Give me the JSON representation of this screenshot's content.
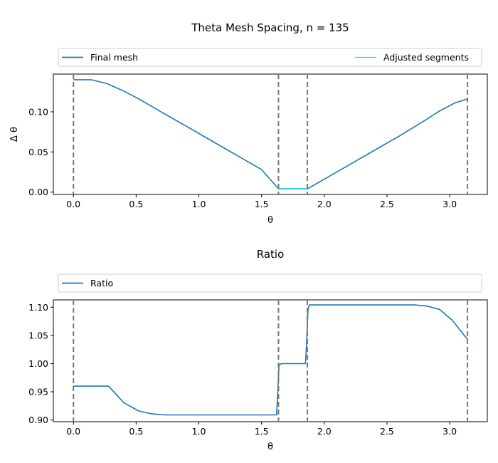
{
  "chart_data": [
    {
      "type": "line",
      "title": "Theta Mesh Spacing, n = 135",
      "xlabel": "θ",
      "ylabel": "Δ θ",
      "xlim": [
        -0.16,
        3.3
      ],
      "ylim": [
        -0.003,
        0.147
      ],
      "xticks": [
        0.0,
        0.5,
        1.0,
        1.5,
        2.0,
        2.5,
        3.0
      ],
      "xtick_labels": [
        "0.0",
        "0.5",
        "1.0",
        "1.5",
        "2.0",
        "2.5",
        "3.0"
      ],
      "yticks": [
        0.0,
        0.05,
        0.1
      ],
      "ytick_labels": [
        "0.00",
        "0.05",
        "0.10"
      ],
      "vlines": [
        0.0,
        1.635,
        1.865,
        3.1416
      ],
      "legend_position": "top, above plot",
      "series": [
        {
          "name": "Final mesh",
          "color": "#1f77b4",
          "x": [
            0.0,
            0.14,
            0.27,
            0.4,
            0.51,
            0.61,
            0.72,
            0.9,
            1.1,
            1.3,
            1.5,
            1.635,
            1.865,
            2.0,
            2.2,
            2.4,
            2.6,
            2.8,
            2.92,
            3.04,
            3.1416
          ],
          "y": [
            0.14,
            0.14,
            0.135,
            0.126,
            0.117,
            0.108,
            0.098,
            0.082,
            0.064,
            0.046,
            0.028,
            0.004,
            0.004,
            0.016,
            0.034,
            0.052,
            0.07,
            0.089,
            0.101,
            0.111,
            0.116
          ]
        },
        {
          "name": "Adjusted segments",
          "color": "#00e5ee",
          "x": [
            1.635,
            1.865
          ],
          "y": [
            0.004,
            0.004
          ]
        }
      ]
    },
    {
      "type": "line",
      "title": "Ratio",
      "xlabel": "θ",
      "ylabel": "",
      "xlim": [
        -0.16,
        3.3
      ],
      "ylim": [
        0.897,
        1.113
      ],
      "xticks": [
        0.0,
        0.5,
        1.0,
        1.5,
        2.0,
        2.5,
        3.0
      ],
      "xtick_labels": [
        "0.0",
        "0.5",
        "1.0",
        "1.5",
        "2.0",
        "2.5",
        "3.0"
      ],
      "yticks": [
        0.9,
        0.95,
        1.0,
        1.05,
        1.1
      ],
      "ytick_labels": [
        "0.90",
        "0.95",
        "1.00",
        "1.05",
        "1.10"
      ],
      "vlines": [
        0.0,
        1.635,
        1.865,
        3.1416
      ],
      "legend_position": "top, above plot",
      "series": [
        {
          "name": "Ratio",
          "color": "#1f77b4",
          "x": [
            0.0,
            0.14,
            0.28,
            0.4,
            0.52,
            0.62,
            0.73,
            0.9,
            1.2,
            1.5,
            1.62,
            1.64,
            1.66,
            1.85,
            1.86,
            1.87,
            1.88,
            2.2,
            2.5,
            2.72,
            2.82,
            2.92,
            3.02,
            3.1416
          ],
          "y": [
            0.96,
            0.96,
            0.96,
            0.931,
            0.916,
            0.911,
            0.909,
            0.909,
            0.909,
            0.909,
            0.909,
            0.998,
            1.0,
            1.0,
            1.04,
            1.095,
            1.104,
            1.104,
            1.104,
            1.104,
            1.102,
            1.096,
            1.077,
            1.043
          ]
        }
      ]
    }
  ]
}
